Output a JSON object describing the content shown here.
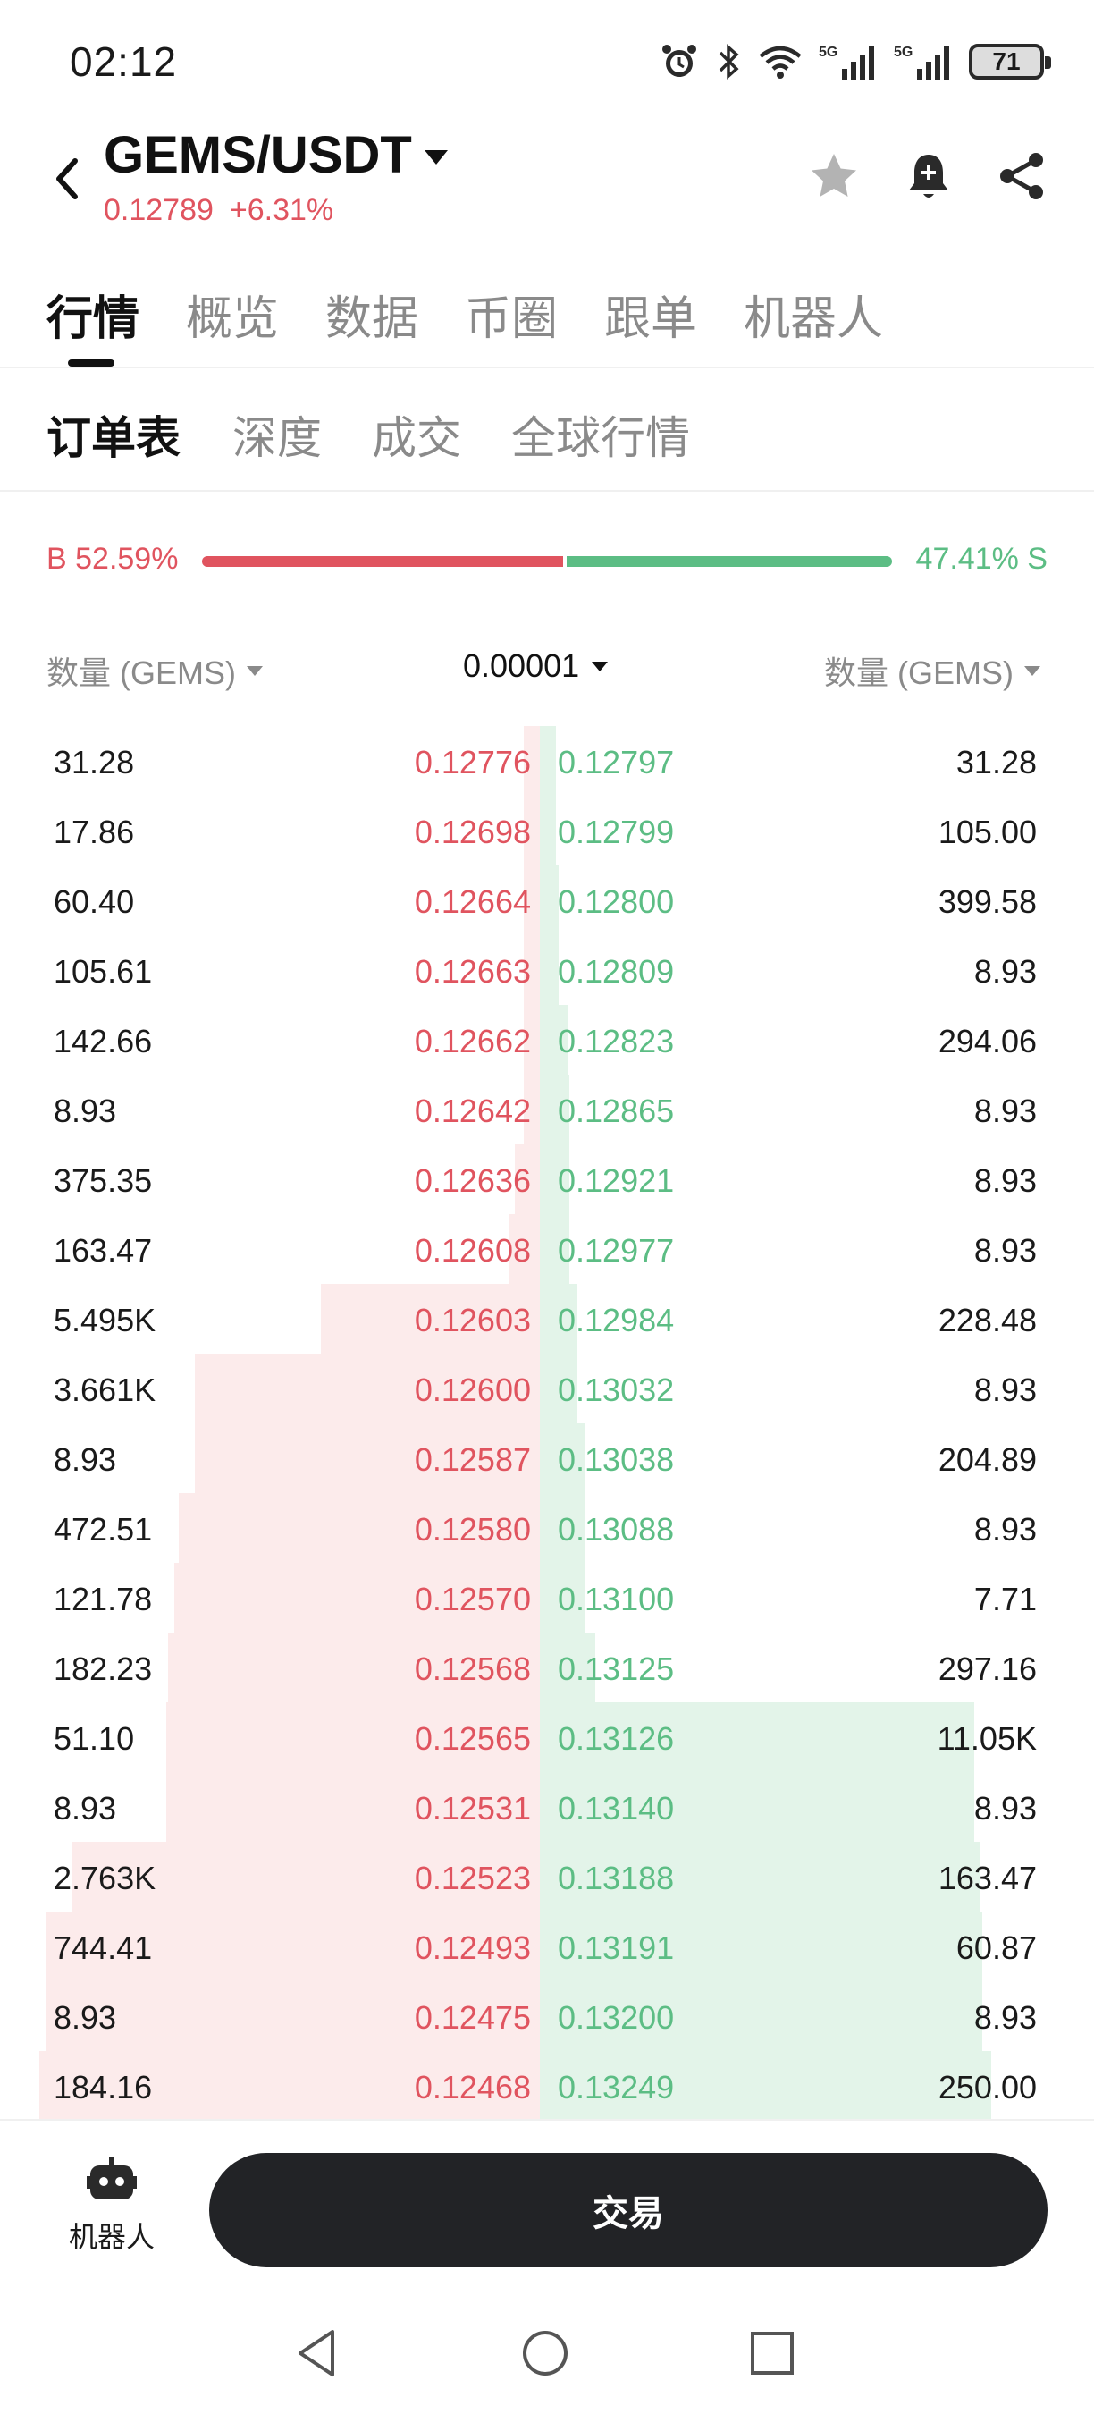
{
  "status": {
    "time": "02:12",
    "battery": "71"
  },
  "header": {
    "pair": "GEMS/USDT",
    "price": "0.12789",
    "change": "+6.31%"
  },
  "main_tabs": [
    "行情",
    "概览",
    "数据",
    "币圈",
    "跟单",
    "机器人"
  ],
  "sub_tabs": [
    "订单表",
    "深度",
    "成交",
    "全球行情"
  ],
  "ratio": {
    "buy_label": "B 52.59%",
    "sell_label": "47.41% S",
    "buy_fraction": 0.5259
  },
  "columns": {
    "left": "数量 (GEMS)",
    "precision": "0.00001",
    "right": "数量 (GEMS)"
  },
  "book": [
    {
      "bid_qty": "31.28",
      "bid_price": "0.12776",
      "ask_price": "0.12797",
      "ask_qty": "31.28"
    },
    {
      "bid_qty": "17.86",
      "bid_price": "0.12698",
      "ask_price": "0.12799",
      "ask_qty": "105.00"
    },
    {
      "bid_qty": "60.40",
      "bid_price": "0.12664",
      "ask_price": "0.12800",
      "ask_qty": "399.58"
    },
    {
      "bid_qty": "105.61",
      "bid_price": "0.12663",
      "ask_price": "0.12809",
      "ask_qty": "8.93"
    },
    {
      "bid_qty": "142.66",
      "bid_price": "0.12662",
      "ask_price": "0.12823",
      "ask_qty": "294.06"
    },
    {
      "bid_qty": "8.93",
      "bid_price": "0.12642",
      "ask_price": "0.12865",
      "ask_qty": "8.93"
    },
    {
      "bid_qty": "375.35",
      "bid_price": "0.12636",
      "ask_price": "0.12921",
      "ask_qty": "8.93"
    },
    {
      "bid_qty": "163.47",
      "bid_price": "0.12608",
      "ask_price": "0.12977",
      "ask_qty": "8.93"
    },
    {
      "bid_qty": "5.495K",
      "bid_price": "0.12603",
      "ask_price": "0.12984",
      "ask_qty": "228.48"
    },
    {
      "bid_qty": "3.661K",
      "bid_price": "0.12600",
      "ask_price": "0.13032",
      "ask_qty": "8.93"
    },
    {
      "bid_qty": "8.93",
      "bid_price": "0.12587",
      "ask_price": "0.13038",
      "ask_qty": "204.89"
    },
    {
      "bid_qty": "472.51",
      "bid_price": "0.12580",
      "ask_price": "0.13088",
      "ask_qty": "8.93"
    },
    {
      "bid_qty": "121.78",
      "bid_price": "0.12570",
      "ask_price": "0.13100",
      "ask_qty": "7.71"
    },
    {
      "bid_qty": "182.23",
      "bid_price": "0.12568",
      "ask_price": "0.13125",
      "ask_qty": "297.16"
    },
    {
      "bid_qty": "51.10",
      "bid_price": "0.12565",
      "ask_price": "0.13126",
      "ask_qty": "11.05K"
    },
    {
      "bid_qty": "8.93",
      "bid_price": "0.12531",
      "ask_price": "0.13140",
      "ask_qty": "8.93"
    },
    {
      "bid_qty": "2.763K",
      "bid_price": "0.12523",
      "ask_price": "0.13188",
      "ask_qty": "163.47"
    },
    {
      "bid_qty": "744.41",
      "bid_price": "0.12493",
      "ask_price": "0.13191",
      "ask_qty": "60.87"
    },
    {
      "bid_qty": "8.93",
      "bid_price": "0.12475",
      "ask_price": "0.13200",
      "ask_qty": "8.93"
    },
    {
      "bid_qty": "184.16",
      "bid_price": "0.12468",
      "ask_price": "0.13249",
      "ask_qty": "250.00"
    }
  ],
  "bottom": {
    "robot_label": "机器人",
    "trade_label": "交易"
  },
  "colors": {
    "bid": "#e0545f",
    "ask": "#5cbd84",
    "bid_bg": "#fcebeb",
    "ask_bg": "#e3f4e9"
  }
}
